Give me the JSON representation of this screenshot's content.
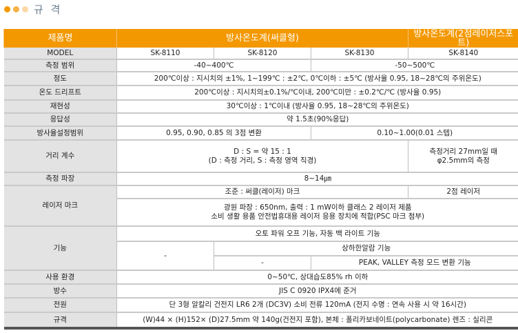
{
  "section_title": "규 격",
  "colors": {
    "header": "#f39800",
    "label_bg": "#e3e3e3",
    "dots": [
      "#f39800",
      "#f6b247",
      "#fbd9a6"
    ]
  },
  "header": {
    "label": "제품명",
    "group1": "방사온도계(써클형)",
    "group2": "방사온도계(2점레이저스포트)"
  },
  "model": {
    "label": "MODEL",
    "values": [
      "SK-8110",
      "SK-8120",
      "SK-8130",
      "SK-8140"
    ]
  },
  "range": {
    "label": "측정 범위",
    "a": "-40~400℃",
    "b": "-50~500℃"
  },
  "accuracy": {
    "label": "정도",
    "value": "200℃이상 : 지시치의 ±1%, 1~199℃ : ±2℃, 0℃이하 : ±5℃ (방사율 0.95, 18~28℃의 주위온도)"
  },
  "drift": {
    "label": "온도 드리프트",
    "value": "200℃이상 : 지시치의±0.1%/℃이내, 200℃미만 : ±0.2℃/℃ (방사율 0.95)"
  },
  "repeat": {
    "label": "재현성",
    "value": "30℃이상 : 1℃이내 (방사율 0.95, 18~28℃의 주위온도)"
  },
  "response": {
    "label": "응답성",
    "value": "약 1.5초(90%응답)"
  },
  "emissivity": {
    "label": "방사율설정범위",
    "a": "0.95, 0.90, 0.85 의 3점 변환",
    "b": "0.10~1.00(0.01 스텝)"
  },
  "distance": {
    "label": "거리 계수",
    "a1": "D : S  = 약 15 : 1",
    "a2": "(D : 측정 거리, S : 측정 영역 직경)",
    "b1": "측정거리 27mm일 때",
    "b2": "φ2.5mm의 측정"
  },
  "wavelength": {
    "label": "측정 파장",
    "value": "8~14㎛"
  },
  "laser": {
    "label": "레이저 마크",
    "a": "조준 : 써클(레이저) 마크",
    "b": "2점 레이저",
    "c1": "광원 파장 : 650nm, 출력 : 1 mW이하 클래스 2 레이저 제품",
    "c2": "소비 생활 용품 안전법휴대용 레이저 응용 장치에 적합(PSC 마크 첨부)"
  },
  "functions": {
    "label": "기능",
    "all": "오토 파워 오프 기능, 자동 백 라이트 기능",
    "dash1": "-",
    "alarm": "상하한알람 기능",
    "dash2": "-",
    "peak": "PEAK, VALLEY 측정 모드 변환 기능"
  },
  "env": {
    "label": "사용 환경",
    "value": "0~50℃, 상대습도85% rh 이하"
  },
  "waterproof": {
    "label": "방수",
    "value": "JIS C 0920  IPX4에 준거"
  },
  "power": {
    "label": "전원",
    "value": "단 3형 알칼리 건전지 LR6 2개 (DC3V) 소비 전류 120mA (전지 수명 : 연속 사용 시 약 16시간)"
  },
  "spec": {
    "label": "규격",
    "value": "(W)44 × (H)152× (D)27.5mm  약 140g(건전지 포함), 본체 : 폴리카보네이트(polycarbonate) 렌즈 : 실리콘"
  }
}
